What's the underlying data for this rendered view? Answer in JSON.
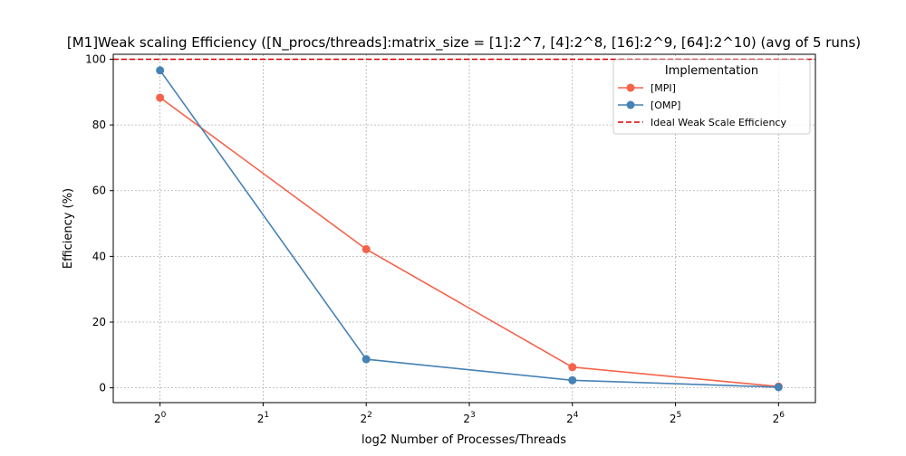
{
  "chart_data": {
    "type": "line",
    "title": "[M1]Weak scaling Efficiency ([N_procs/threads]:matrix_size = [1]:2^7, [4]:2^8, [16]:2^9, [64]:2^10) (avg of 5 runs)",
    "xlabel": "log2 Number of Processes/Threads",
    "ylabel": "Efficiency (%)",
    "x_scale": "log2",
    "x": [
      1,
      4,
      16,
      64
    ],
    "xlim": [
      0.73,
      82
    ],
    "ylim": [
      -4.5,
      101.5
    ],
    "x_ticks": [
      {
        "value": 1,
        "base": "2",
        "exp": "0"
      },
      {
        "value": 2,
        "base": "2",
        "exp": "1"
      },
      {
        "value": 4,
        "base": "2",
        "exp": "2"
      },
      {
        "value": 8,
        "base": "2",
        "exp": "3"
      },
      {
        "value": 16,
        "base": "2",
        "exp": "4"
      },
      {
        "value": 32,
        "base": "2",
        "exp": "5"
      },
      {
        "value": 64,
        "base": "2",
        "exp": "6"
      }
    ],
    "y_ticks": [
      0,
      20,
      40,
      60,
      80,
      100
    ],
    "grid": true,
    "legend_title": "Implementation",
    "legend_position": "top-right",
    "series": [
      {
        "name": "[MPI]",
        "color": "#f4634a",
        "values": [
          88.3,
          42.2,
          6.3,
          0.4
        ]
      },
      {
        "name": "[OMP]",
        "color": "#4682b4",
        "values": [
          96.6,
          8.7,
          2.3,
          0.2
        ]
      }
    ],
    "reference_line": {
      "name": "Ideal Weak Scale Efficiency",
      "value": 100,
      "color": "#dd0000",
      "style": "dashed"
    }
  }
}
